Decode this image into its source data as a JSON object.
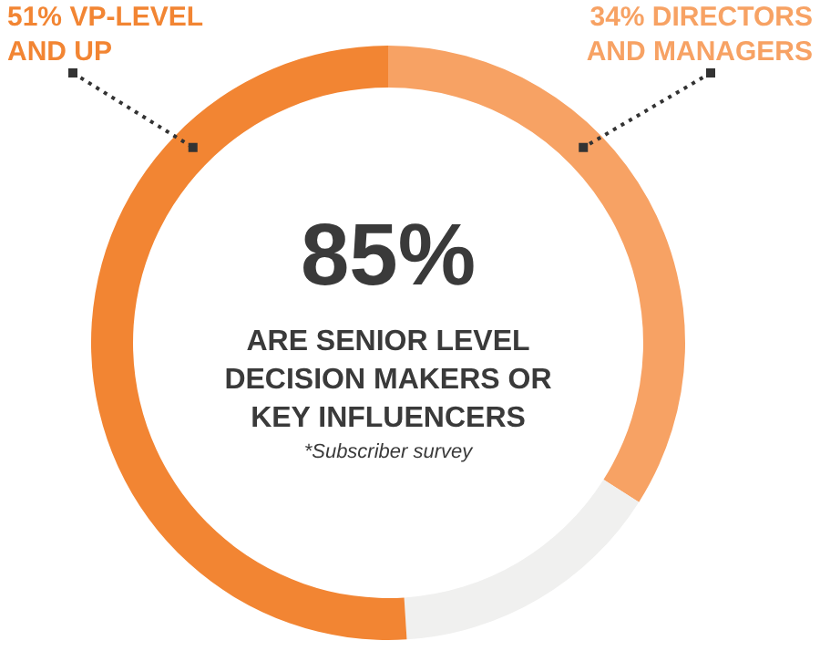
{
  "chart_data": {
    "type": "donut",
    "title": "85%",
    "subtitle": "ARE SENIOR LEVEL DECISION MAKERS OR KEY INFLUENCERS",
    "annotations": [
      "*Subscriber survey"
    ],
    "categories": [
      "DIRECTORS AND MANAGERS",
      null,
      "VP-LEVEL AND UP"
    ],
    "values": [
      34,
      15,
      51
    ],
    "value_labels": [
      "34%",
      null,
      "51%"
    ],
    "colors": [
      "#f7a264",
      "#f0f0ef",
      "#f28533"
    ]
  }
}
